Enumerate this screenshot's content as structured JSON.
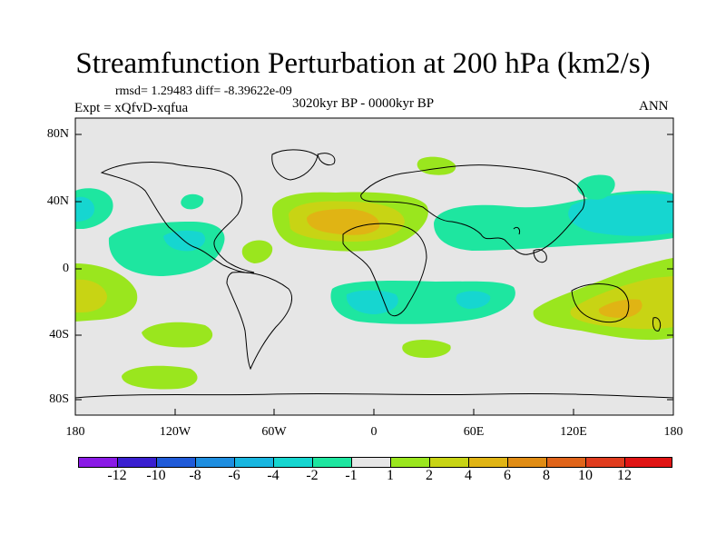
{
  "title": "Streamfunction Perturbation at 200 hPa (km2/s)",
  "stats": "rmsd= 1.29483 diff= -8.39622e-09",
  "experiment": "Expt = xQfvD-xqfua",
  "period": "3020kyr BP - 0000kyr BP",
  "season": "ANN",
  "lat_labels": [
    "80N",
    "40N",
    "0",
    "40S",
    "80S"
  ],
  "lon_labels": [
    "180",
    "120W",
    "60W",
    "0",
    "60E",
    "120E",
    "180"
  ],
  "colorbar": {
    "labels": [
      "-12",
      "-10",
      "-8",
      "-6",
      "-4",
      "-2",
      "-1",
      "1",
      "2",
      "4",
      "6",
      "8",
      "10",
      "12"
    ],
    "colors": [
      "#8a1ae6",
      "#3a1fd0",
      "#1f5ad8",
      "#1e8ee0",
      "#18b6e0",
      "#16d6d0",
      "#1ee6a0",
      "#e6e6e6",
      "#9ae61e",
      "#c8d414",
      "#e0b414",
      "#e08c14",
      "#e0641a",
      "#e03c1e",
      "#e01414"
    ]
  },
  "colors": {
    "land_bg": "#e6e6e6",
    "level_m2": "#1ee6a0",
    "level_m4": "#16d6d0",
    "level_p2": "#9ae61e",
    "level_p4": "#c8d414",
    "level_p6": "#e0b414"
  }
}
